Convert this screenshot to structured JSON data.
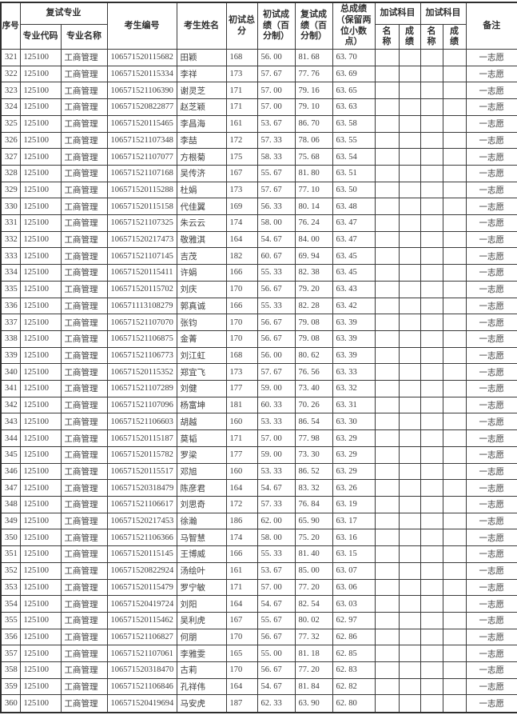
{
  "table": {
    "headers": {
      "col_no": "序号",
      "retest_major_group": "复试专业",
      "major_code": "专业代码",
      "major_name": "专业名称",
      "candidate_id": "考生编号",
      "candidate_name": "考生姓名",
      "initial_total": "初试总分",
      "initial_score": "初试成绩（百分制）",
      "retest_score": "复试成绩（百分制）",
      "final_score": "总成绩（保留两位小数点）",
      "extra_subject_group": "加试科目",
      "extra_name": "名称",
      "extra_score": "成绩",
      "remark": "备注"
    },
    "rows": [
      [
        "321",
        "125100",
        "工商管理",
        "106571520115682",
        "田颖",
        "168",
        "56. 00",
        "81. 68",
        "63. 70",
        "",
        "",
        "",
        "",
        "一志愿"
      ],
      [
        "322",
        "125100",
        "工商管理",
        "106571520115334",
        "李祥",
        "173",
        "57. 67",
        "77. 76",
        "63. 69",
        "",
        "",
        "",
        "",
        "一志愿"
      ],
      [
        "323",
        "125100",
        "工商管理",
        "106571521106390",
        "谢灵芝",
        "171",
        "57. 00",
        "79. 16",
        "63. 65",
        "",
        "",
        "",
        "",
        "一志愿"
      ],
      [
        "324",
        "125100",
        "工商管理",
        "106571520822877",
        "赵芝颖",
        "171",
        "57. 00",
        "79. 10",
        "63. 63",
        "",
        "",
        "",
        "",
        "一志愿"
      ],
      [
        "325",
        "125100",
        "工商管理",
        "106571520115465",
        "李昌海",
        "161",
        "53. 67",
        "86. 70",
        "63. 58",
        "",
        "",
        "",
        "",
        "一志愿"
      ],
      [
        "326",
        "125100",
        "工商管理",
        "106571521107348",
        "李喆",
        "172",
        "57. 33",
        "78. 06",
        "63. 55",
        "",
        "",
        "",
        "",
        "一志愿"
      ],
      [
        "327",
        "125100",
        "工商管理",
        "106571521107077",
        "方根菊",
        "175",
        "58. 33",
        "75. 68",
        "63. 54",
        "",
        "",
        "",
        "",
        "一志愿"
      ],
      [
        "328",
        "125100",
        "工商管理",
        "106571521107168",
        "吴传济",
        "167",
        "55. 67",
        "81. 80",
        "63. 51",
        "",
        "",
        "",
        "",
        "一志愿"
      ],
      [
        "329",
        "125100",
        "工商管理",
        "106571520115288",
        "杜娟",
        "173",
        "57. 67",
        "77. 10",
        "63. 50",
        "",
        "",
        "",
        "",
        "一志愿"
      ],
      [
        "330",
        "125100",
        "工商管理",
        "106571520115158",
        "代佳翼",
        "169",
        "56. 33",
        "80. 14",
        "63. 48",
        "",
        "",
        "",
        "",
        "一志愿"
      ],
      [
        "331",
        "125100",
        "工商管理",
        "106571521107325",
        "朱云云",
        "174",
        "58. 00",
        "76. 24",
        "63. 47",
        "",
        "",
        "",
        "",
        "一志愿"
      ],
      [
        "332",
        "125100",
        "工商管理",
        "106571520217473",
        "敬雅淇",
        "164",
        "54. 67",
        "84. 00",
        "63. 47",
        "",
        "",
        "",
        "",
        "一志愿"
      ],
      [
        "333",
        "125100",
        "工商管理",
        "106571521107145",
        "吉茂",
        "182",
        "60. 67",
        "69. 94",
        "63. 45",
        "",
        "",
        "",
        "",
        "一志愿"
      ],
      [
        "334",
        "125100",
        "工商管理",
        "106571520115411",
        "许娟",
        "166",
        "55. 33",
        "82. 38",
        "63. 45",
        "",
        "",
        "",
        "",
        "一志愿"
      ],
      [
        "335",
        "125100",
        "工商管理",
        "106571520115702",
        "刘庆",
        "170",
        "56. 67",
        "79. 20",
        "63. 43",
        "",
        "",
        "",
        "",
        "一志愿"
      ],
      [
        "336",
        "125100",
        "工商管理",
        "106571113108279",
        "郭真诚",
        "166",
        "55. 33",
        "82. 28",
        "63. 42",
        "",
        "",
        "",
        "",
        "一志愿"
      ],
      [
        "337",
        "125100",
        "工商管理",
        "106571521107070",
        "张钧",
        "170",
        "56. 67",
        "79. 08",
        "63. 39",
        "",
        "",
        "",
        "",
        "一志愿"
      ],
      [
        "338",
        "125100",
        "工商管理",
        "106571521106875",
        "金菁",
        "170",
        "56. 67",
        "79. 08",
        "63. 39",
        "",
        "",
        "",
        "",
        "一志愿"
      ],
      [
        "339",
        "125100",
        "工商管理",
        "106571521106773",
        "刘江虹",
        "168",
        "56. 00",
        "80. 62",
        "63. 39",
        "",
        "",
        "",
        "",
        "一志愿"
      ],
      [
        "340",
        "125100",
        "工商管理",
        "106571520115352",
        "郑宜飞",
        "173",
        "57. 67",
        "76. 56",
        "63. 33",
        "",
        "",
        "",
        "",
        "一志愿"
      ],
      [
        "341",
        "125100",
        "工商管理",
        "106571521107289",
        "刘健",
        "177",
        "59. 00",
        "73. 40",
        "63. 32",
        "",
        "",
        "",
        "",
        "一志愿"
      ],
      [
        "342",
        "125100",
        "工商管理",
        "106571521107096",
        "杨富坤",
        "181",
        "60. 33",
        "70. 26",
        "63. 31",
        "",
        "",
        "",
        "",
        "一志愿"
      ],
      [
        "343",
        "125100",
        "工商管理",
        "106571521106603",
        "胡越",
        "160",
        "53. 33",
        "86. 54",
        "63. 30",
        "",
        "",
        "",
        "",
        "一志愿"
      ],
      [
        "344",
        "125100",
        "工商管理",
        "106571520115187",
        "莫韬",
        "171",
        "57. 00",
        "77. 98",
        "63. 29",
        "",
        "",
        "",
        "",
        "一志愿"
      ],
      [
        "345",
        "125100",
        "工商管理",
        "106571520115782",
        "罗梁",
        "177",
        "59. 00",
        "73. 30",
        "63. 29",
        "",
        "",
        "",
        "",
        "一志愿"
      ],
      [
        "346",
        "125100",
        "工商管理",
        "106571520115517",
        "邓旭",
        "160",
        "53. 33",
        "86. 52",
        "63. 29",
        "",
        "",
        "",
        "",
        "一志愿"
      ],
      [
        "347",
        "125100",
        "工商管理",
        "106571520318479",
        "陈彦君",
        "164",
        "54. 67",
        "83. 32",
        "63. 26",
        "",
        "",
        "",
        "",
        "一志愿"
      ],
      [
        "348",
        "125100",
        "工商管理",
        "106571521106617",
        "刘思奇",
        "172",
        "57. 33",
        "76. 84",
        "63. 19",
        "",
        "",
        "",
        "",
        "一志愿"
      ],
      [
        "349",
        "125100",
        "工商管理",
        "106571520217453",
        "徐瀚",
        "186",
        "62. 00",
        "65. 90",
        "63. 17",
        "",
        "",
        "",
        "",
        "一志愿"
      ],
      [
        "350",
        "125100",
        "工商管理",
        "106571521106366",
        "马智慧",
        "174",
        "58. 00",
        "75. 20",
        "63. 16",
        "",
        "",
        "",
        "",
        "一志愿"
      ],
      [
        "351",
        "125100",
        "工商管理",
        "106571520115145",
        "王博威",
        "166",
        "55. 33",
        "81. 40",
        "63. 15",
        "",
        "",
        "",
        "",
        "一志愿"
      ],
      [
        "352",
        "125100",
        "工商管理",
        "106571520822924",
        "汤绘叶",
        "161",
        "53. 67",
        "85. 00",
        "63. 07",
        "",
        "",
        "",
        "",
        "一志愿"
      ],
      [
        "353",
        "125100",
        "工商管理",
        "106571520115479",
        "罗宁敏",
        "171",
        "57. 00",
        "77. 20",
        "63. 06",
        "",
        "",
        "",
        "",
        "一志愿"
      ],
      [
        "354",
        "125100",
        "工商管理",
        "106571520419724",
        "刘阳",
        "164",
        "54. 67",
        "82. 54",
        "63. 03",
        "",
        "",
        "",
        "",
        "一志愿"
      ],
      [
        "355",
        "125100",
        "工商管理",
        "106571520115462",
        "吴利虎",
        "167",
        "55. 67",
        "80. 02",
        "62. 97",
        "",
        "",
        "",
        "",
        "一志愿"
      ],
      [
        "356",
        "125100",
        "工商管理",
        "106571521106827",
        "何朋",
        "170",
        "56. 67",
        "77. 32",
        "62. 86",
        "",
        "",
        "",
        "",
        "一志愿"
      ],
      [
        "357",
        "125100",
        "工商管理",
        "106571521107061",
        "李雅雯",
        "165",
        "55. 00",
        "81. 18",
        "62. 85",
        "",
        "",
        "",
        "",
        "一志愿"
      ],
      [
        "358",
        "125100",
        "工商管理",
        "106571520318470",
        "古莉",
        "170",
        "56. 67",
        "77. 20",
        "62. 83",
        "",
        "",
        "",
        "",
        "一志愿"
      ],
      [
        "359",
        "125100",
        "工商管理",
        "106571521106846",
        "孔祥伟",
        "164",
        "54. 67",
        "81. 84",
        "62. 82",
        "",
        "",
        "",
        "",
        "一志愿"
      ],
      [
        "360",
        "125100",
        "工商管理",
        "106571520419694",
        "马安虎",
        "187",
        "62. 33",
        "63. 90",
        "62. 80",
        "",
        "",
        "",
        "",
        "一志愿"
      ]
    ]
  }
}
